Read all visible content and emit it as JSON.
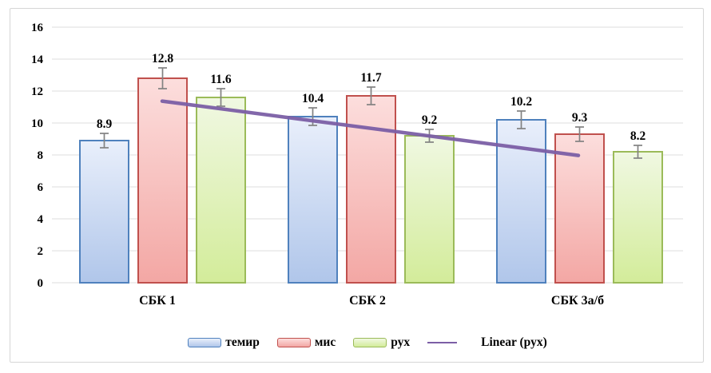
{
  "figure": {
    "background": "#ffffff",
    "border_color": "#d6d6d6"
  },
  "chart_data": {
    "type": "bar",
    "title": "",
    "xlabel": "",
    "ylabel": "",
    "categories": [
      "СБК 1",
      "СБК 2",
      "СБК 3а/б"
    ],
    "series": [
      {
        "name": "темир",
        "values": [
          8.9,
          10.4,
          10.2
        ],
        "errors": [
          0.45,
          0.55,
          0.55
        ],
        "border_color": "#4f81bd",
        "fill_top": "#e9effb",
        "fill_bottom": "#b0c6ea"
      },
      {
        "name": "мис",
        "values": [
          12.8,
          11.7,
          9.3
        ],
        "errors": [
          0.65,
          0.55,
          0.45
        ],
        "border_color": "#c0504d",
        "fill_top": "#fcdedd",
        "fill_bottom": "#f3a7a4"
      },
      {
        "name": "рух",
        "values": [
          11.6,
          9.2,
          8.2
        ],
        "errors": [
          0.55,
          0.4,
          0.4
        ],
        "border_color": "#9bbb59",
        "fill_top": "#f0f8e2",
        "fill_bottom": "#d3ec9a"
      }
    ],
    "trendline": {
      "name": "Linear (рух)",
      "color": "#7c5fa6",
      "start_value": 11.37,
      "end_value": 7.97
    },
    "data_labels_shown": true,
    "data_label_values": [
      "8.9",
      "10.4",
      "10.2",
      "12.8",
      "11.7",
      "9.3",
      "11.6",
      "9.2",
      "8.2"
    ],
    "ylim": [
      0,
      16
    ],
    "ytick_step": 2,
    "yticks": [
      0,
      2,
      4,
      6,
      8,
      10,
      12,
      14,
      16
    ],
    "grid": true,
    "gridline_color": "#dcdcdc",
    "error_bar_color": "#828282",
    "legend_position": "bottom"
  }
}
